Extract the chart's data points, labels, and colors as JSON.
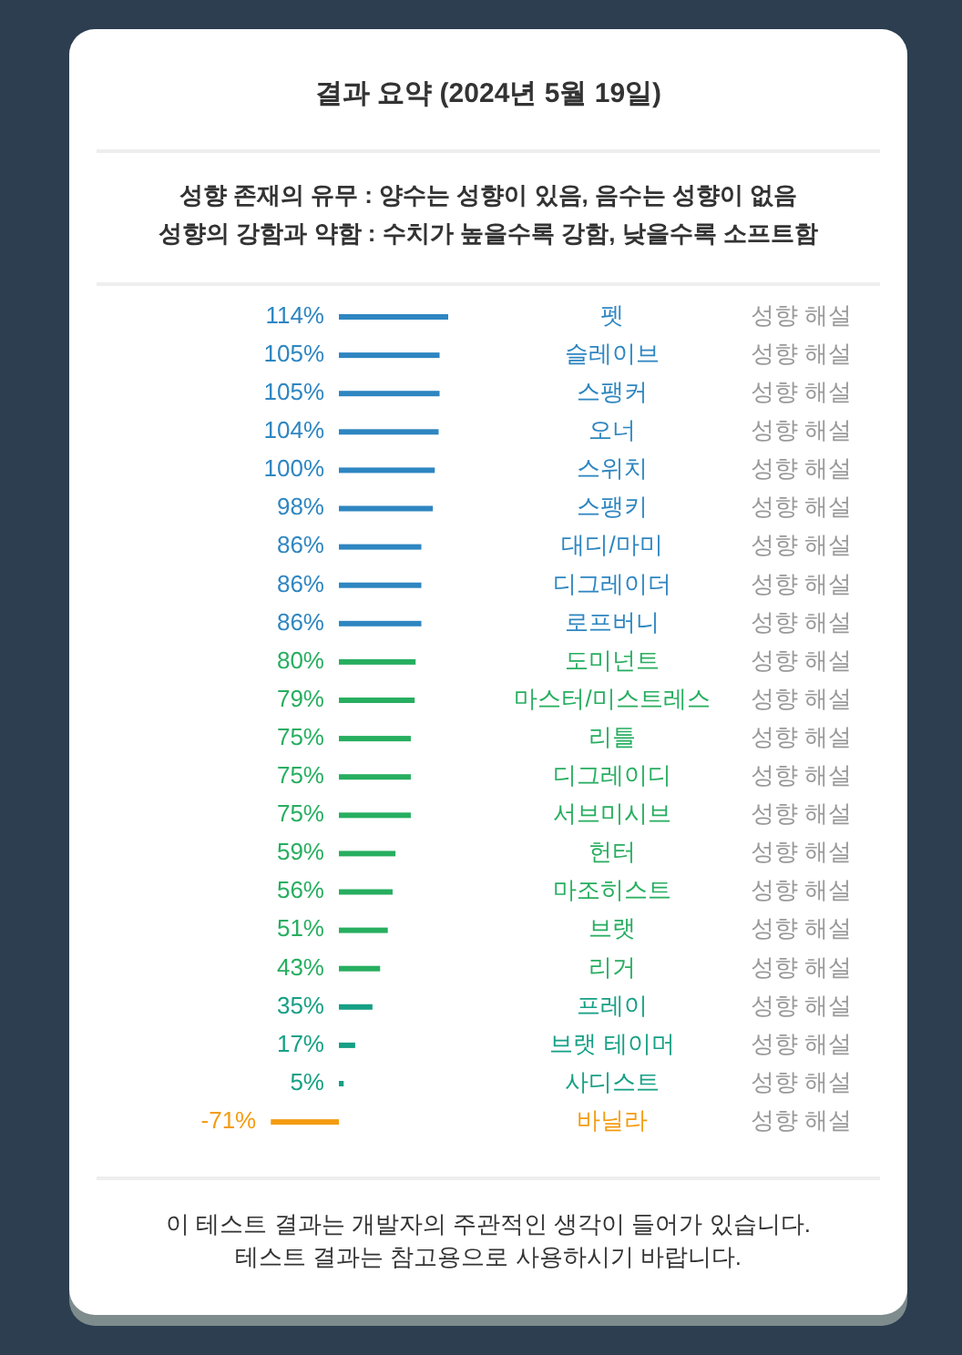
{
  "chart_data": {
    "type": "bar",
    "orientation": "horizontal",
    "data_labels": true,
    "title": "결과 요약 (2024년 5월 19일)",
    "subtitle": "성향 존재의 유무 : 양수는 성향이 있음, 음수는 성향이 없음\n성향의 강함과 약함 : 수치가 높을수록 강함, 낮을수록 소프트함",
    "categories": [
      "펫",
      "슬레이브",
      "스팽커",
      "오너",
      "스위치",
      "스팽키",
      "대디/마미",
      "디그레이더",
      "로프버니",
      "도미넌트",
      "마스터/미스트레스",
      "리틀",
      "디그레이디",
      "서브미시브",
      "헌터",
      "마조히스트",
      "브랫",
      "리거",
      "프레이",
      "브랫 테이머",
      "사디스트",
      "바닐라"
    ],
    "values": [
      114,
      105,
      105,
      104,
      100,
      98,
      86,
      86,
      86,
      80,
      79,
      75,
      75,
      75,
      59,
      56,
      51,
      43,
      35,
      17,
      5,
      -71
    ],
    "colors": [
      "#2e86c1",
      "#2e86c1",
      "#2e86c1",
      "#2e86c1",
      "#2e86c1",
      "#2e86c1",
      "#2e86c1",
      "#2e86c1",
      "#2e86c1",
      "#27ae60",
      "#27ae60",
      "#27ae60",
      "#27ae60",
      "#27ae60",
      "#27ae60",
      "#27ae60",
      "#27ae60",
      "#27ae60",
      "#16a085",
      "#16a085",
      "#16a085",
      "#f39c12"
    ],
    "value_labels": [
      "114%",
      "105%",
      "105%",
      "104%",
      "100%",
      "98%",
      "86%",
      "86%",
      "86%",
      "80%",
      "79%",
      "75%",
      "75%",
      "75%",
      "59%",
      "56%",
      "51%",
      "43%",
      "35%",
      "17%",
      "5%",
      "-71%"
    ],
    "annotations": [
      "성향 해설",
      "성향 해설",
      "성향 해설",
      "성향 해설",
      "성향 해설",
      "성향 해설",
      "성향 해설",
      "성향 해설",
      "성향 해설",
      "성향 해설",
      "성향 해설",
      "성향 해설",
      "성향 해설",
      "성향 해설",
      "성향 해설",
      "성향 해설",
      "성향 해설",
      "성향 해설",
      "성향 해설",
      "성향 해설",
      "성향 해설",
      "성향 해설",
      "이 테스트 결과는 개발자의 주관적인 생각이 들어가 있습니다.",
      "테스트 결과는 참고용으로 사용하시기 바랍니다."
    ]
  }
}
